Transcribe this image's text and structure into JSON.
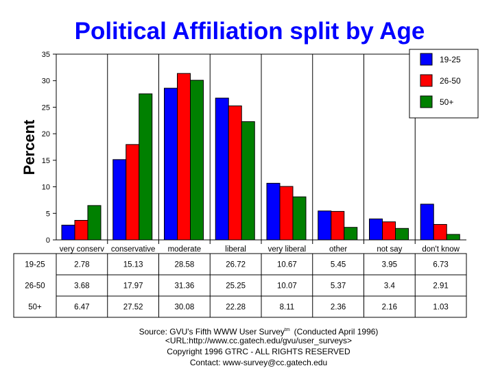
{
  "chart_data": {
    "type": "bar",
    "title": "Political Affiliation split by Age",
    "xlabel": "",
    "ylabel": "Percent",
    "ylim": [
      0,
      35
    ],
    "yticks": [
      0,
      5,
      10,
      15,
      20,
      25,
      30,
      35
    ],
    "grid": "vertical category dividers",
    "legend_position": "top-right",
    "categories": [
      "very conserv",
      "conservative",
      "moderate",
      "liberal",
      "very liberal",
      "other",
      "not say",
      "don't know"
    ],
    "series": [
      {
        "name": "19-25",
        "color": "#0000ff",
        "values": [
          2.78,
          15.13,
          28.58,
          26.72,
          10.67,
          5.45,
          3.95,
          6.73
        ]
      },
      {
        "name": "26-50",
        "color": "#ff0000",
        "values": [
          3.68,
          17.97,
          31.36,
          25.25,
          10.07,
          5.37,
          3.4,
          2.91
        ]
      },
      {
        "name": "50+",
        "color": "#008000",
        "values": [
          6.47,
          27.52,
          30.08,
          22.28,
          8.11,
          2.36,
          2.16,
          1.03
        ]
      }
    ],
    "table_values": {
      "19-25": [
        "2.78",
        "15.13",
        "28.58",
        "26.72",
        "10.67",
        "5.45",
        "3.95",
        "6.73"
      ],
      "26-50": [
        "3.68",
        "17.97",
        "31.36",
        "25.25",
        "10.07",
        "5.37",
        "3.4",
        "2.91"
      ],
      "50+": [
        "6.47",
        "27.52",
        "30.08",
        "22.28",
        "8.11",
        "2.36",
        "2.16",
        "1.03"
      ]
    }
  },
  "footer": {
    "source": "Source: GVU's Fifth WWW User Survey",
    "tm": "tm",
    "conducted": "(Conducted April 1996)",
    "url": "<URL:http://www.cc.gatech.edu/gvu/user_surveys>",
    "copyright": "Copyright 1996 GTRC -  ALL RIGHTS RESERVED",
    "contact": "Contact: www-survey@cc.gatech.edu"
  },
  "colors": {
    "title": "#0000ff"
  }
}
